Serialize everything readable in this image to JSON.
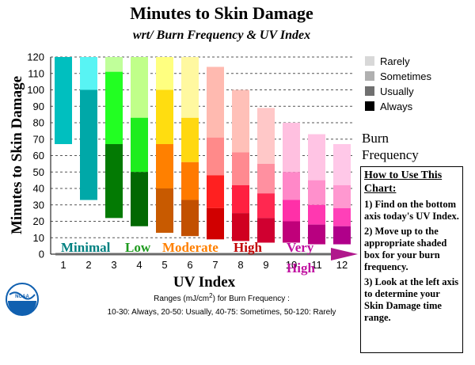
{
  "chart_data": {
    "type": "bar",
    "title": "Minutes to Skin Damage",
    "subtitle": "wrt/ Burn Frequency & UV Index",
    "xlabel": "UV Index",
    "ylabel": "Minutes to Skin Damage",
    "ylim": [
      0,
      120
    ],
    "yticks": [
      0,
      10,
      20,
      30,
      40,
      50,
      60,
      70,
      80,
      90,
      100,
      110,
      120
    ],
    "grid": true,
    "categories": [
      "1",
      "2",
      "3",
      "4",
      "5",
      "6",
      "7",
      "8",
      "9",
      "10",
      "11",
      "12"
    ],
    "series": [
      {
        "name": "Always",
        "segments": [
          [
            67,
            120
          ],
          [
            33,
            100
          ],
          [
            22,
            67
          ],
          [
            17,
            50
          ],
          [
            13,
            40
          ],
          [
            11,
            33
          ],
          [
            9,
            28
          ],
          [
            8,
            25
          ],
          [
            7,
            22
          ],
          [
            7,
            20
          ],
          [
            6,
            18
          ],
          [
            6,
            17
          ]
        ]
      },
      {
        "name": "Usually",
        "segments": [
          [
            67,
            120
          ],
          [
            33,
            100
          ],
          [
            67,
            111
          ],
          [
            50,
            83
          ],
          [
            40,
            67
          ],
          [
            33,
            56
          ],
          [
            28,
            48
          ],
          [
            25,
            42
          ],
          [
            22,
            37
          ],
          [
            20,
            33
          ],
          [
            18,
            30
          ],
          [
            17,
            28
          ]
        ]
      },
      {
        "name": "Sometimes",
        "segments": [
          [
            67,
            120
          ],
          [
            33,
            120
          ],
          [
            111,
            120
          ],
          [
            83,
            120
          ],
          [
            67,
            100
          ],
          [
            56,
            83
          ],
          [
            48,
            71
          ],
          [
            42,
            62
          ],
          [
            37,
            55
          ],
          [
            33,
            50
          ],
          [
            30,
            45
          ],
          [
            28,
            42
          ]
        ]
      },
      {
        "name": "Rarely",
        "segments": [
          [
            67,
            120
          ],
          [
            33,
            120
          ],
          [
            111,
            120
          ],
          [
            83,
            120
          ],
          [
            100,
            120
          ],
          [
            83,
            120
          ],
          [
            71,
            114
          ],
          [
            62,
            100
          ],
          [
            55,
            89
          ],
          [
            50,
            80
          ],
          [
            45,
            73
          ],
          [
            42,
            67
          ]
        ]
      }
    ],
    "colors": [
      [
        "#00bfbf",
        "#00bfbf",
        "#00bfbf",
        "#00bfbf"
      ],
      [
        "#00a8a8",
        "#00bcbc",
        "#58f4f4",
        "#58f4f4"
      ],
      [
        "#037a03",
        "#22ff22",
        "#c0ff9a",
        "#c0ff9a"
      ],
      [
        "#026802",
        "#1eed1e",
        "#c0ff8a",
        "#c0ff8a"
      ],
      [
        "#c85a00",
        "#ff8000",
        "#ffdd10",
        "#ffff80"
      ],
      [
        "#c25000",
        "#ff7a00",
        "#ffd810",
        "#fff8a0"
      ],
      [
        "#d10000",
        "#ff2020",
        "#ff8a8a",
        "#ffbab0"
      ],
      [
        "#d00020",
        "#ff2040",
        "#ff8a90",
        "#ffc0b8"
      ],
      [
        "#d00030",
        "#ff2850",
        "#ff90a0",
        "#ffc8c8"
      ],
      [
        "#c0007a",
        "#ff30a8",
        "#ff88c8",
        "#ffc0e0"
      ],
      [
        "#b80080",
        "#ff38b0",
        "#ff90cc",
        "#ffc4e4"
      ],
      [
        "#b0008a",
        "#ff40b8",
        "#ff98d0",
        "#ffc8e8"
      ]
    ],
    "legend": {
      "placement": "top-right",
      "title": [
        "Burn",
        "Frequency"
      ],
      "items": [
        {
          "label": "Rarely",
          "color": "#d8d8d8"
        },
        {
          "label": "Sometimes",
          "color": "#b0b0b0"
        },
        {
          "label": "Usually",
          "color": "#707070"
        },
        {
          "label": "Always",
          "color": "#000000"
        }
      ]
    },
    "categories_text": [
      {
        "label": "Minimal",
        "color": "#008080"
      },
      {
        "label": "Low",
        "color": "#1e9a1e"
      },
      {
        "label": "Moderate",
        "color": "#ff8000"
      },
      {
        "label": "High",
        "color": "#c00000"
      },
      {
        "label": "Very",
        "color": "#c010a0"
      },
      {
        "label": "High",
        "color": "#c010a0"
      }
    ],
    "ranges_line1_a": "Ranges (mJ/cm",
    "ranges_line1_sup": "2",
    "ranges_line1_b": ") for Burn Frequency :",
    "ranges_line2": "10-30: Always, 20-50: Usually, 40-75: Sometimes, 50-120: Rarely"
  },
  "howto": {
    "heading": "How to Use This Chart:",
    "steps": [
      "1) Find on the bottom axis today's UV Index.",
      "2) Move up to the appropriate shaded box for your burn frequency.",
      "3) Look at the left axis to determine your Skin Damage time range."
    ]
  },
  "logo": {
    "text": "NOAA",
    "color": "#1060b0"
  }
}
